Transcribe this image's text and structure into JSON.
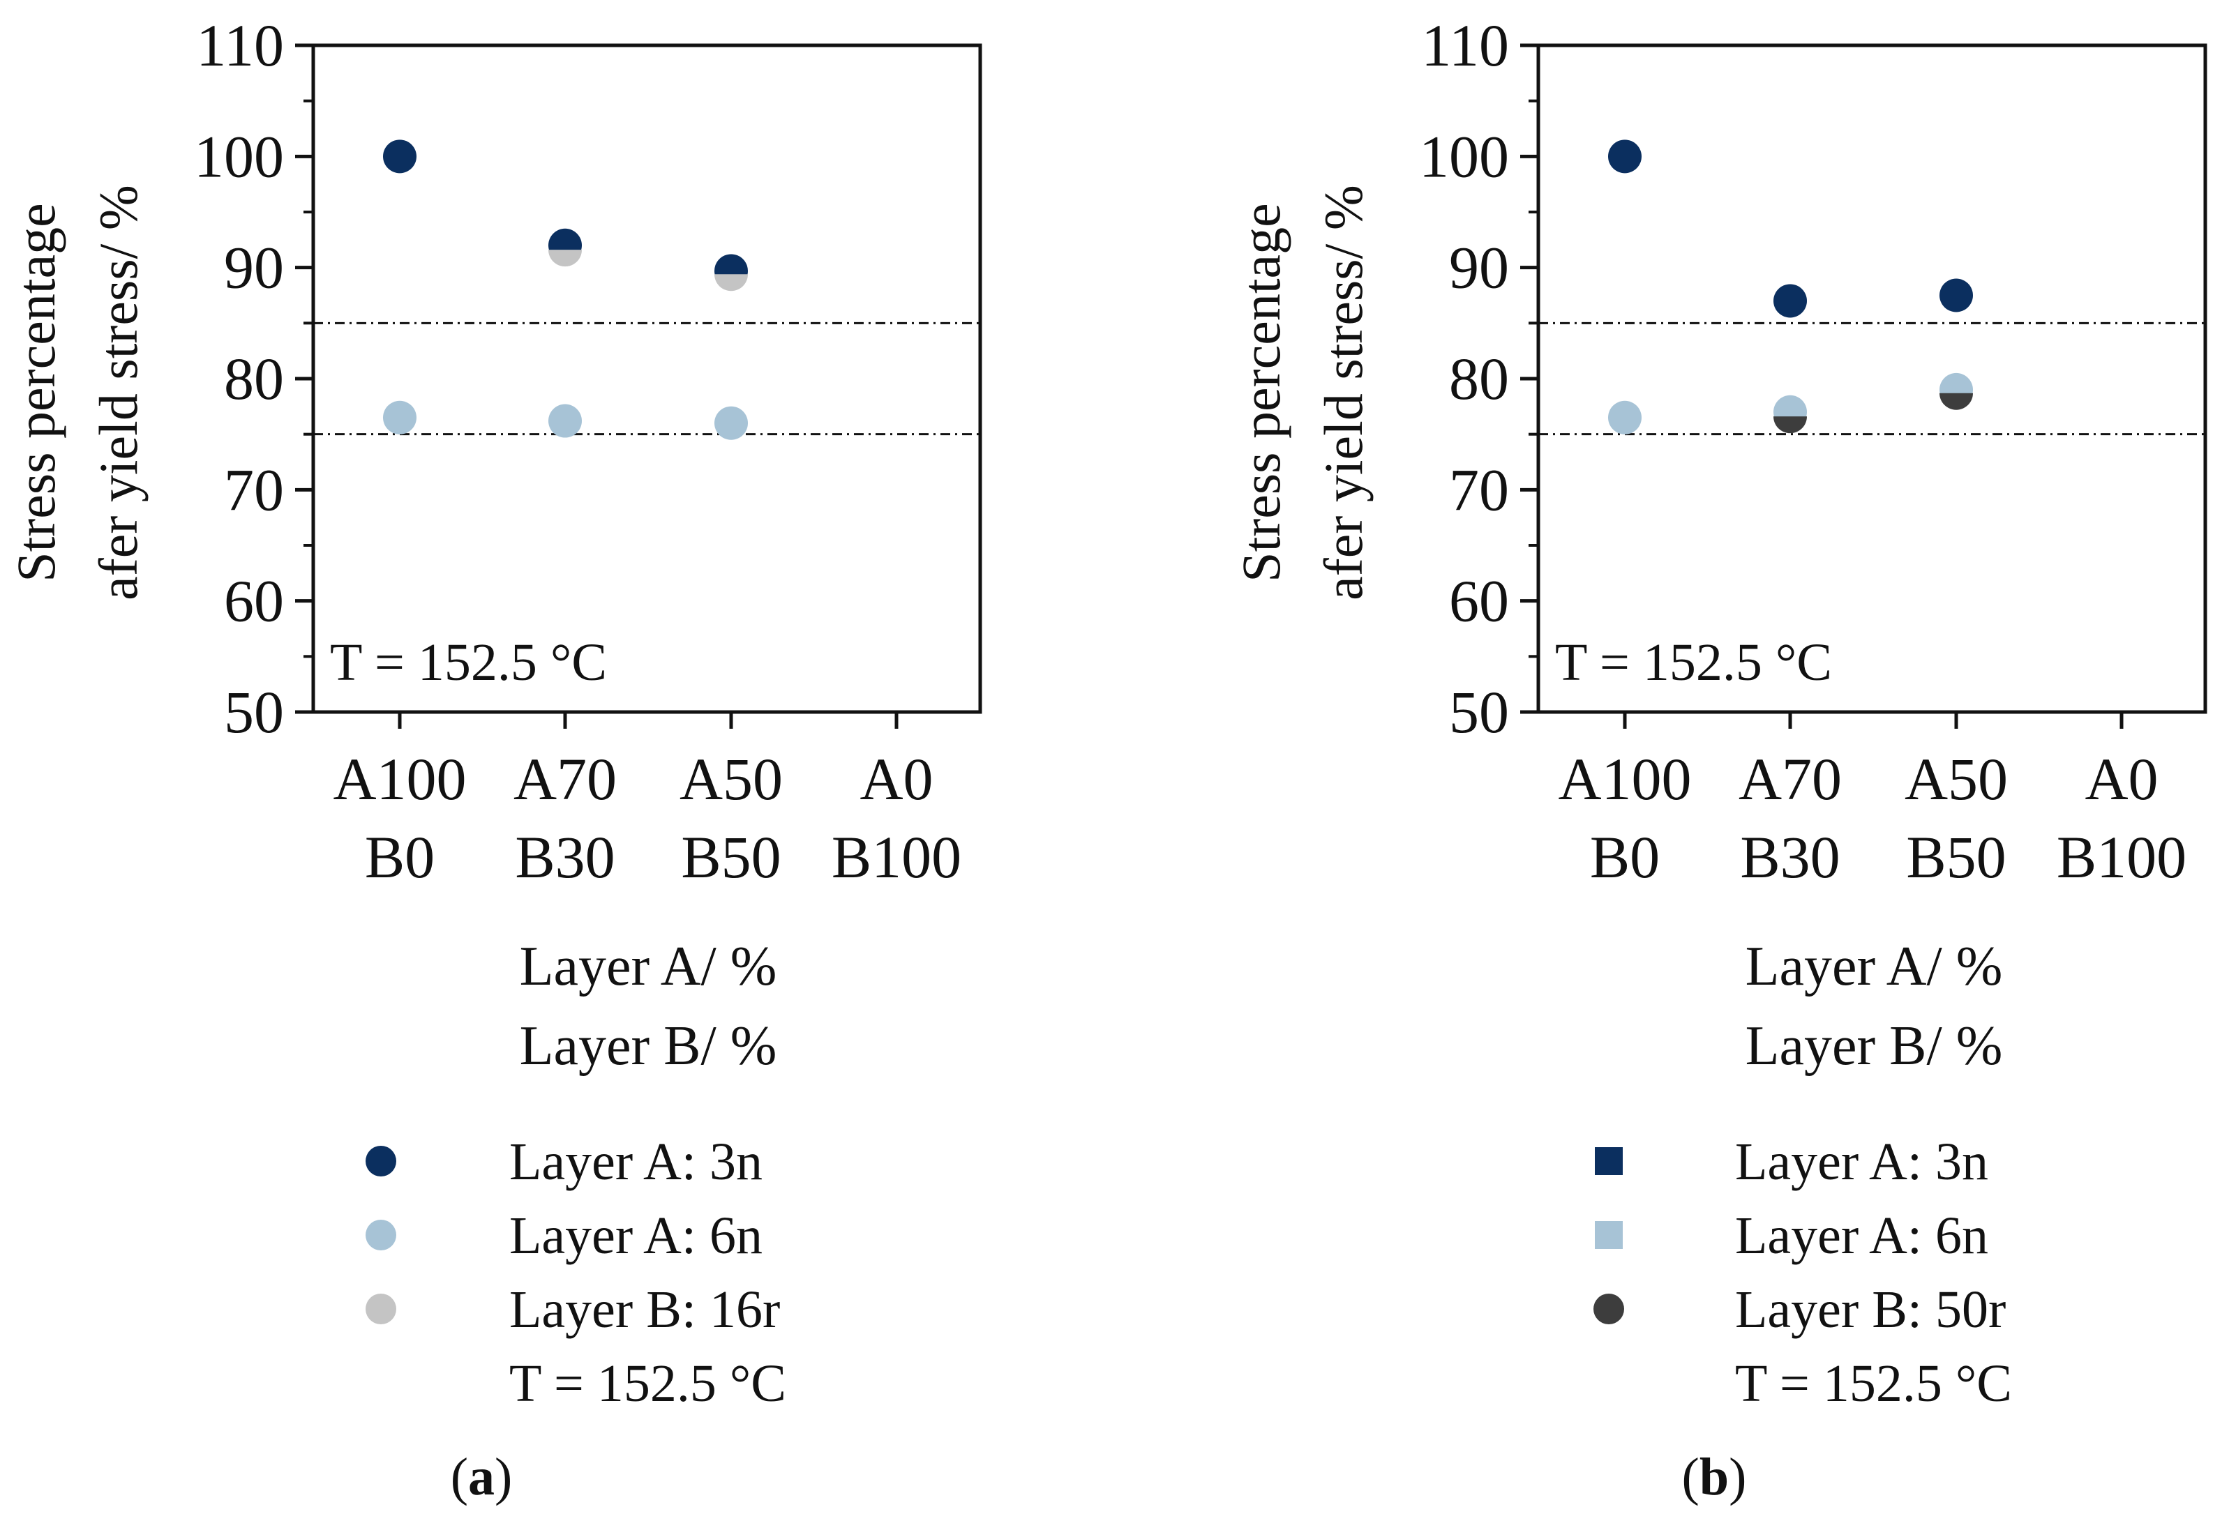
{
  "chart_data": [
    {
      "type": "scatter",
      "panel_label": "a",
      "ylabel": [
        "Stress percentage",
        "afer yield stress/ %"
      ],
      "xlabel": [
        "Layer A/ %",
        "Layer B/ %"
      ],
      "ylim": [
        50,
        110
      ],
      "yticks": [
        "50",
        "60",
        "70",
        "80",
        "90",
        "100",
        "110"
      ],
      "categories": [
        [
          "A100",
          "B0"
        ],
        [
          "A70",
          "B30"
        ],
        [
          "A50",
          "B50"
        ],
        [
          "A0",
          "B100"
        ]
      ],
      "annotation": "T = 152.5 °C",
      "reference_lines": [
        75,
        85
      ],
      "series": [
        {
          "name": "Layer A: 3n",
          "marker": "circle",
          "color": "#0b2f5f",
          "values": [
            100,
            92,
            89.7,
            null
          ]
        },
        {
          "name": "Layer A: 6n",
          "marker": "circle",
          "color": "#a7c3d6",
          "values": [
            76.5,
            76.2,
            76,
            null
          ]
        },
        {
          "name": "Layer B: 16r",
          "marker": "circle",
          "color": "#c4c4c4",
          "values": [
            null,
            91.6,
            89.4,
            null
          ]
        }
      ],
      "legend_extra": "T = 152.5 °C"
    },
    {
      "type": "scatter",
      "panel_label": "b",
      "ylabel": [
        "Stress percentage",
        "afer yield stress/ %"
      ],
      "xlabel": [
        "Layer A/ %",
        "Layer B/ %"
      ],
      "ylim": [
        50,
        110
      ],
      "yticks": [
        "50",
        "60",
        "70",
        "80",
        "90",
        "100",
        "110"
      ],
      "categories": [
        [
          "A100",
          "B0"
        ],
        [
          "A70",
          "B30"
        ],
        [
          "A50",
          "B50"
        ],
        [
          "A0",
          "B100"
        ]
      ],
      "annotation": "T = 152.5 °C",
      "reference_lines": [
        75,
        85
      ],
      "series": [
        {
          "name": "Layer A: 3n",
          "marker": "square",
          "color": "#0b2f5f",
          "values": [
            100,
            87,
            87.5,
            null
          ]
        },
        {
          "name": "Layer A: 6n",
          "marker": "square",
          "color": "#a7c3d6",
          "values": [
            76.5,
            77,
            79,
            null
          ]
        },
        {
          "name": "Layer B: 50r",
          "marker": "circle",
          "color": "#3d3d3d",
          "values": [
            null,
            76.6,
            78.7,
            null
          ]
        }
      ],
      "legend_extra": "T = 152.5 °C"
    }
  ]
}
